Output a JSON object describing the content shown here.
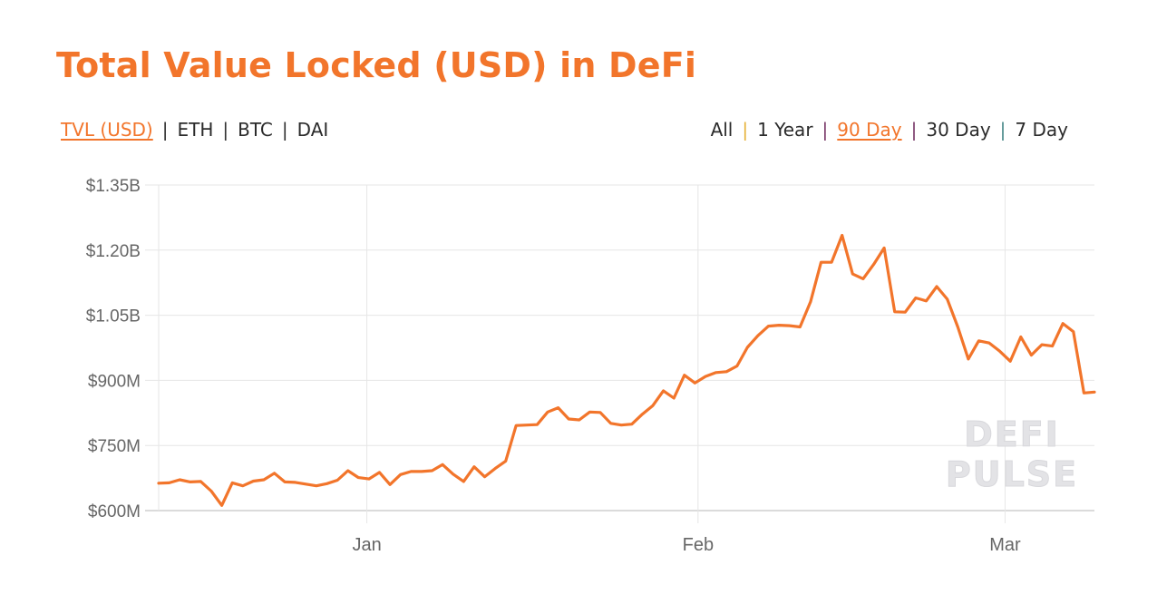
{
  "header": {
    "title": "Total Value Locked (USD) in DeFi"
  },
  "metric_filters": {
    "items": [
      {
        "label": "TVL (USD)",
        "active": true
      },
      {
        "label": "ETH",
        "active": false
      },
      {
        "label": "BTC",
        "active": false
      },
      {
        "label": "DAI",
        "active": false
      }
    ],
    "separator": "|"
  },
  "range_filters": {
    "items": [
      {
        "label": "All",
        "active": false
      },
      {
        "label": "1 Year",
        "active": false
      },
      {
        "label": "90 Day",
        "active": true
      },
      {
        "label": "30 Day",
        "active": false
      },
      {
        "label": "7 Day",
        "active": false
      }
    ],
    "separator": "|"
  },
  "watermark": {
    "line1": "DEFI",
    "line2": "PULSE"
  },
  "colors": {
    "accent": "#f2752b",
    "grid": "#e6e6e6",
    "text": "#2b2b2b",
    "axis_text": "#666666"
  },
  "chart_data": {
    "type": "line",
    "title": "Total Value Locked (USD) in DeFi",
    "xlabel": "",
    "ylabel": "",
    "y_unit": "USD",
    "ylim": [
      600000000,
      1350000000
    ],
    "y_ticks": [
      "$600M",
      "$750M",
      "$900M",
      "$1.05B",
      "$1.20B",
      "$1.35B"
    ],
    "x_ticks": [
      "Jan",
      "Feb",
      "Mar"
    ],
    "grid": true,
    "legend": null,
    "series": [
      {
        "name": "TVL (USD)",
        "color": "#f2752b",
        "values_musd": [
          663,
          664,
          671,
          666,
          667,
          645,
          612,
          664,
          657,
          668,
          671,
          686,
          666,
          665,
          661,
          657,
          662,
          670,
          692,
          676,
          673,
          688,
          660,
          683,
          690,
          690,
          692,
          706,
          684,
          667,
          701,
          678,
          697,
          714,
          796,
          797,
          798,
          827,
          837,
          811,
          809,
          827,
          826,
          801,
          797,
          799,
          822,
          842,
          876,
          859,
          912,
          894,
          909,
          918,
          920,
          933,
          976,
          1003,
          1025,
          1027,
          1026,
          1023,
          1081,
          1172,
          1172,
          1234,
          1145,
          1134,
          1167,
          1205,
          1058,
          1057,
          1090,
          1083,
          1116,
          1087,
          1023,
          949,
          991,
          986,
          967,
          944,
          1000,
          958,
          982,
          979,
          1031,
          1012,
          871,
          873
        ]
      }
    ],
    "x_tick_positions_index": {
      "Jan": 19.8,
      "Feb": 51.3,
      "Mar": 80.5
    }
  }
}
